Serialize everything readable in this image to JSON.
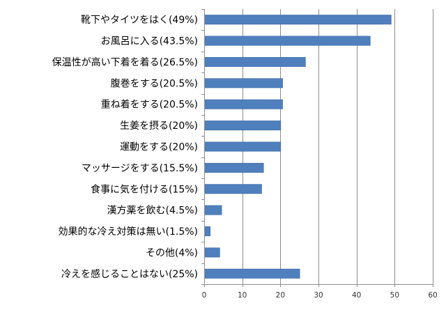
{
  "chart_data": {
    "type": "bar",
    "orientation": "horizontal",
    "categories": [
      "靴下やタイツをはく(49%)",
      "お風呂に入る(43.5%)",
      "保温性が高い下着を着る(26.5%)",
      "腹巻をする(20.5%)",
      "重ね着をする(20.5%)",
      "生姜を摂る(20%)",
      "運動をする(20%)",
      "マッサージをする(15.5%)",
      "食事に気を付ける(15%)",
      "漢方薬を飲む(4.5%)",
      "効果的な冷え対策は無い(1.5%)",
      "その他(4%)",
      "冷えを感じることはない(25%)"
    ],
    "values": [
      49,
      43.5,
      26.5,
      20.5,
      20.5,
      20,
      20,
      15.5,
      15,
      4.5,
      1.5,
      4,
      25
    ],
    "xlim": [
      0,
      60
    ],
    "xticks": [
      "0",
      "10",
      "20",
      "30",
      "40",
      "50",
      "60"
    ],
    "title": "",
    "xlabel": "",
    "ylabel": "",
    "legend": "none",
    "grid": "vertical",
    "colors": {
      "bar": "#4f7fbd",
      "bar_edge": "#3f6aa3",
      "grid": "#8c8c8c",
      "axis": "#8c8c8c"
    }
  }
}
